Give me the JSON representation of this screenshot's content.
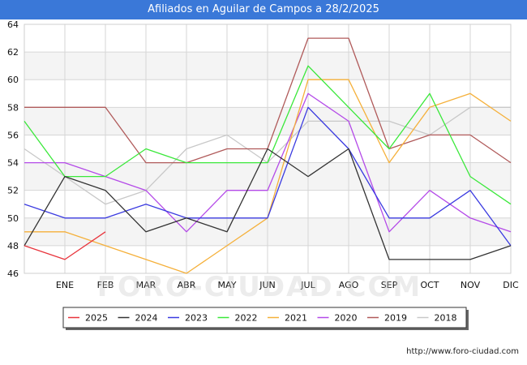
{
  "header": {
    "title": "Afiliados en Aguilar de Campos a 28/2/2025"
  },
  "watermark": "FORO-CIUDAD.COM",
  "footer": {
    "url": "http://www.foro-ciudad.com"
  },
  "chart_data": {
    "type": "line",
    "title": "Afiliados en Aguilar de Campos a 28/2/2025",
    "xlabel": "",
    "ylabel": "",
    "x_tick_labels": [
      "ENE",
      "FEB",
      "MAR",
      "ABR",
      "MAY",
      "JUN",
      "JUL",
      "AGO",
      "SEP",
      "OCT",
      "NOV",
      "DIC"
    ],
    "y_ticks": [
      46,
      48,
      50,
      52,
      54,
      56,
      58,
      60,
      62,
      64
    ],
    "ylim": [
      46,
      64
    ],
    "grid": true,
    "legend_position": "bottom",
    "series": [
      {
        "name": "2025",
        "color": "#e8343c",
        "values": [
          48,
          47,
          49
        ]
      },
      {
        "name": "2024",
        "color": "#333333",
        "values": [
          48,
          53,
          52,
          49,
          50,
          49,
          55,
          53,
          55,
          47,
          47,
          47,
          48
        ]
      },
      {
        "name": "2023",
        "color": "#3a3ae0",
        "values": [
          51,
          50,
          50,
          51,
          50,
          50,
          50,
          58,
          55,
          50,
          50,
          52,
          48
        ]
      },
      {
        "name": "2022",
        "color": "#3ae83a",
        "values": [
          57,
          53,
          53,
          55,
          54,
          54,
          54,
          61,
          58,
          55,
          59,
          53,
          51
        ]
      },
      {
        "name": "2021",
        "color": "#f5b03a",
        "values": [
          49,
          49,
          48,
          47,
          46,
          48,
          50,
          60,
          60,
          54,
          58,
          59,
          57
        ]
      },
      {
        "name": "2020",
        "color": "#b44ae8",
        "values": [
          54,
          54,
          53,
          52,
          49,
          52,
          52,
          59,
          57,
          49,
          52,
          50,
          49
        ]
      },
      {
        "name": "2019",
        "color": "#b05a5a",
        "values": [
          58,
          58,
          58,
          54,
          54,
          55,
          55,
          63,
          63,
          55,
          56,
          56,
          54
        ]
      },
      {
        "name": "2018",
        "color": "#c8c8c8",
        "values": [
          55,
          53,
          51,
          52,
          55,
          56,
          54,
          57,
          57,
          57,
          56,
          58,
          58
        ]
      }
    ]
  }
}
